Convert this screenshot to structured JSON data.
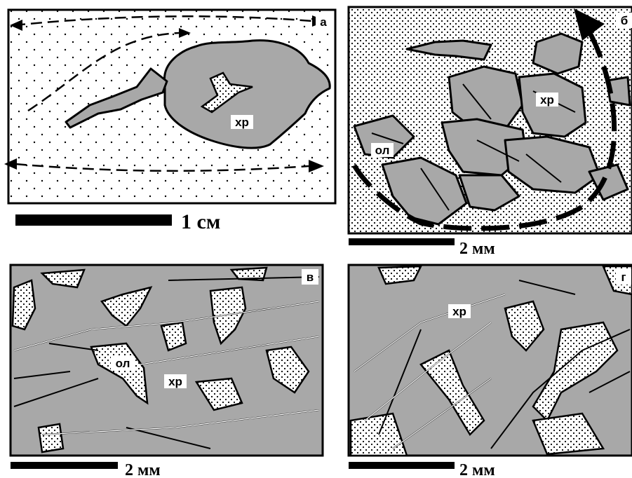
{
  "panels": [
    {
      "letter": "а",
      "labels": [
        "хр"
      ],
      "scale": "1 см"
    },
    {
      "letter": "б",
      "labels": [
        "хр",
        "ол"
      ],
      "scale": "2 мм"
    },
    {
      "letter": "в",
      "labels": [
        "ол",
        "хр"
      ],
      "scale": "2 мм"
    },
    {
      "letter": "г",
      "labels": [
        "хр"
      ],
      "scale": "2 мм"
    }
  ]
}
